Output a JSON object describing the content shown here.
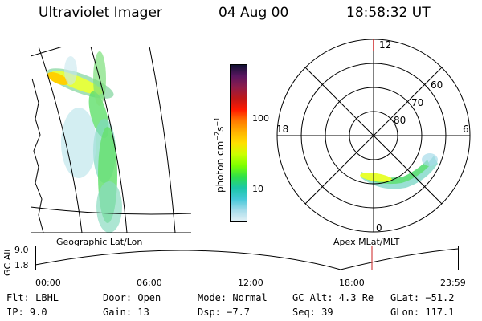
{
  "header": {
    "instrument": "Ultraviolet Imager",
    "date": "04 Aug 00",
    "time": "18:58:32 UT"
  },
  "colorbar": {
    "label": "photon cm",
    "label_sup1": "−2",
    "label_s": "s",
    "label_sup2": "−1",
    "tick_labels": [
      "100",
      "10"
    ],
    "tick_values": [
      100,
      10
    ],
    "colors": [
      "#111133",
      "#5a1660",
      "#8e1c4a",
      "#c01818",
      "#ff1a00",
      "#ff7a00",
      "#ffb300",
      "#ffe000",
      "#ccff00",
      "#7dff00",
      "#2fe04a",
      "#1cc7a8",
      "#45c8d8",
      "#a6dcea",
      "#e3f1f6"
    ]
  },
  "panels": {
    "geographic_label": "Geographic Lat/Lon",
    "apex_label": "Apex MLat/MLT"
  },
  "polar": {
    "mlt_labels": {
      "top": "12",
      "left": "18",
      "right": "6",
      "bottom": "0"
    },
    "mlat_labels": [
      "60",
      "70",
      "80"
    ]
  },
  "altitude_plot": {
    "ylabel": "GC Alt",
    "ytick_labels": [
      "9.0",
      "1.8"
    ],
    "xtick_labels": [
      "00:00",
      "06:00",
      "12:00",
      "18:00",
      "23:59"
    ],
    "current_time_marker_color": "#cc2222"
  },
  "footer": {
    "row1": {
      "filter": "Flt: LBHL",
      "door": "Door: Open",
      "mode": "Mode: Normal",
      "gc_alt": "GC Alt: 4.3 Re",
      "glat": "GLat: −51.2"
    },
    "row2": {
      "ip": "IP:  9.0",
      "gain": "Gain: 13",
      "dsp": "Dsp:   −7.7",
      "seq": "Seq: 39",
      "glon": "GLon: 117.1"
    }
  }
}
